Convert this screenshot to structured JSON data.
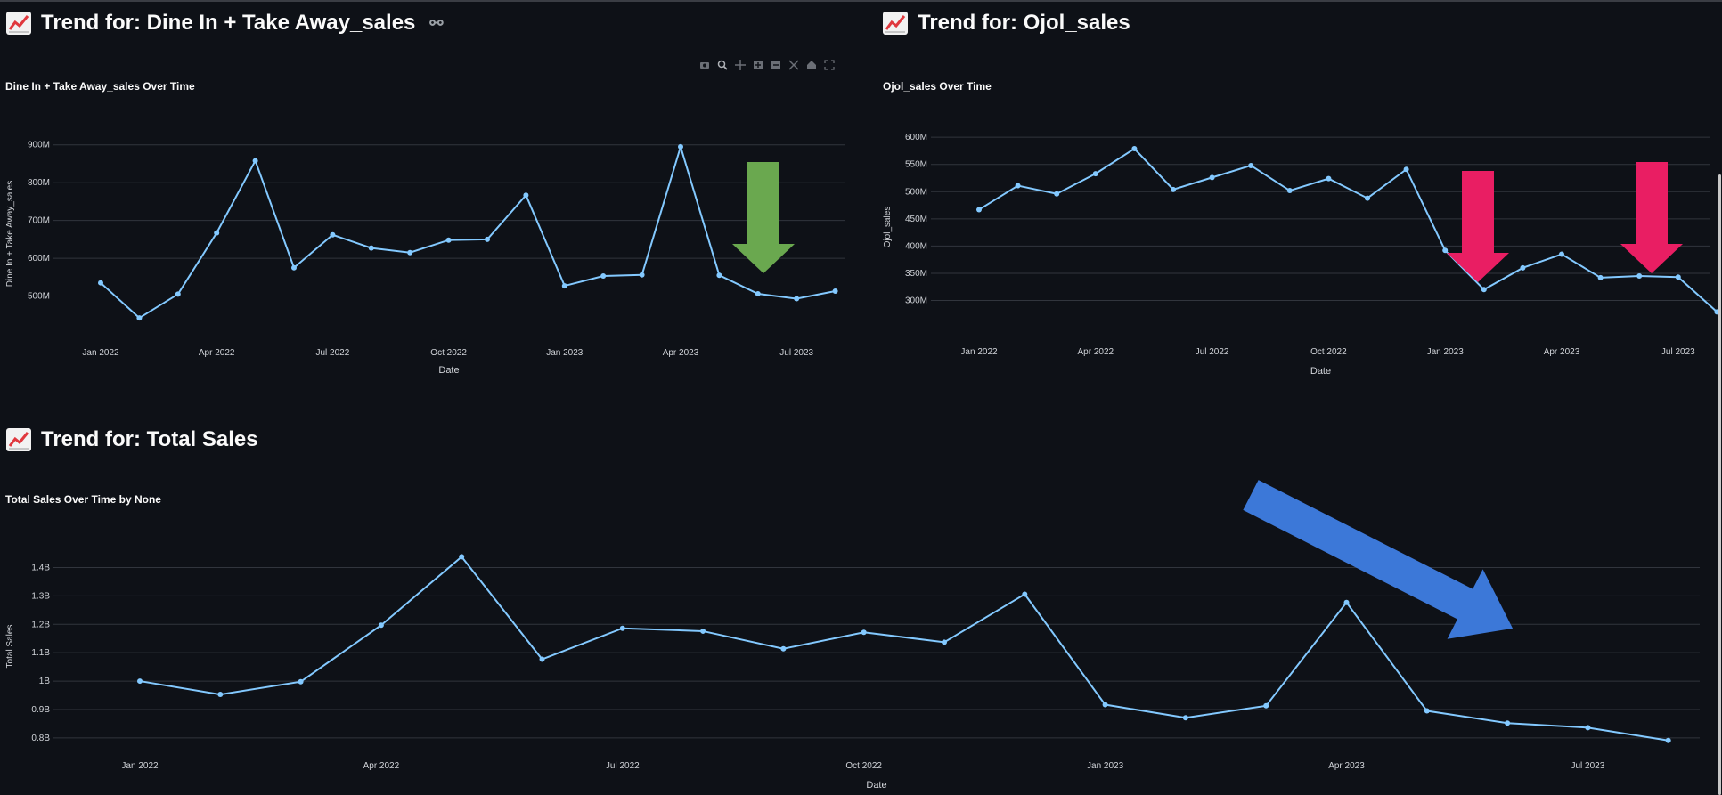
{
  "sections": [
    {
      "title": "Trend for: Dine In + Take Away_sales",
      "link_icon": "link-icon"
    },
    {
      "title": "Trend for: Ojol_sales"
    },
    {
      "title": "Trend for: Total Sales"
    }
  ],
  "toolbar_icons": [
    "camera-icon",
    "zoom-icon",
    "pan-icon",
    "zoom-in-icon",
    "zoom-out-icon",
    "autoscale-icon",
    "home-icon",
    "fullscreen-icon"
  ],
  "colors": {
    "line": "#83c9ff",
    "bg": "#0e1117",
    "grid": "#31353d",
    "green_arrow": "#6aa84f",
    "red_arrow": "#e91e63",
    "blue_arrow": "#3c78d8"
  },
  "chart_data": [
    {
      "type": "line",
      "title": "Dine In + Take Away_sales Over Time",
      "xlabel": "Date",
      "ylabel": "Dine In + Take Away_sales",
      "x_ticks": [
        "Jan 2022",
        "Apr 2022",
        "Jul 2022",
        "Oct 2022",
        "Jan 2023",
        "Apr 2023",
        "Jul 2023"
      ],
      "y_ticks": [
        "500M",
        "600M",
        "700M",
        "800M",
        "900M"
      ],
      "ylim": [
        400,
        930
      ],
      "series": [
        {
          "x": [
            "2022-01",
            "2022-02",
            "2022-03",
            "2022-04",
            "2022-05",
            "2022-06",
            "2022-07",
            "2022-08",
            "2022-09",
            "2022-10",
            "2022-11",
            "2022-12",
            "2023-01",
            "2023-02",
            "2023-03",
            "2023-04",
            "2023-05",
            "2023-06",
            "2023-07",
            "2023-08"
          ],
          "values": [
            535,
            442,
            505,
            667,
            858,
            575,
            662,
            627,
            615,
            648,
            650,
            767,
            527,
            553,
            556,
            895,
            555,
            506,
            493,
            513
          ]
        }
      ],
      "annotation": {
        "type": "down-arrow",
        "color": "#6aa84f"
      }
    },
    {
      "type": "line",
      "title": "Ojol_sales Over Time",
      "xlabel": "Date",
      "ylabel": "Ojol_sales",
      "x_ticks": [
        "Jan 2022",
        "Apr 2022",
        "Jul 2022",
        "Oct 2022",
        "Jan 2023",
        "Apr 2023",
        "Jul 2023"
      ],
      "y_ticks": [
        "300M",
        "350M",
        "400M",
        "450M",
        "500M",
        "550M",
        "600M"
      ],
      "ylim": [
        255,
        615
      ],
      "series": [
        {
          "x": [
            "2022-01",
            "2022-02",
            "2022-03",
            "2022-04",
            "2022-05",
            "2022-06",
            "2022-07",
            "2022-08",
            "2022-09",
            "2022-10",
            "2022-11",
            "2022-12",
            "2023-01",
            "2023-02",
            "2023-03",
            "2023-04",
            "2023-05",
            "2023-06",
            "2023-07",
            "2023-08"
          ],
          "values": [
            467,
            511,
            496,
            533,
            579,
            504,
            526,
            548,
            502,
            524,
            488,
            541,
            392,
            320,
            360,
            385,
            342,
            345,
            343,
            279
          ]
        }
      ],
      "annotation": {
        "type": "down-arrow",
        "color": "#e91e63",
        "count": 2
      }
    },
    {
      "type": "line",
      "title": "Total Sales Over Time by None",
      "xlabel": "Date",
      "ylabel": "Total Sales",
      "x_ticks": [
        "Jan 2022",
        "Apr 2022",
        "Jul 2022",
        "Oct 2022",
        "Jan 2023",
        "Apr 2023",
        "Jul 2023"
      ],
      "y_ticks": [
        "0.8B",
        "0.9B",
        "1B",
        "1.1B",
        "1.2B",
        "1.3B",
        "1.4B"
      ],
      "ylim": [
        0.765,
        1.48
      ],
      "series": [
        {
          "x": [
            "2022-01",
            "2022-02",
            "2022-03",
            "2022-04",
            "2022-05",
            "2022-06",
            "2022-07",
            "2022-08",
            "2022-09",
            "2022-10",
            "2022-11",
            "2022-12",
            "2023-01",
            "2023-02",
            "2023-03",
            "2023-04",
            "2023-05",
            "2023-06",
            "2023-07",
            "2023-08"
          ],
          "values": [
            1.0,
            0.953,
            0.998,
            1.197,
            1.438,
            1.077,
            1.186,
            1.176,
            1.114,
            1.172,
            1.137,
            1.306,
            0.917,
            0.871,
            0.913,
            1.277,
            0.895,
            0.852,
            0.836,
            0.791
          ]
        }
      ],
      "annotation": {
        "type": "diagonal-arrow",
        "color": "#3c78d8"
      }
    }
  ]
}
